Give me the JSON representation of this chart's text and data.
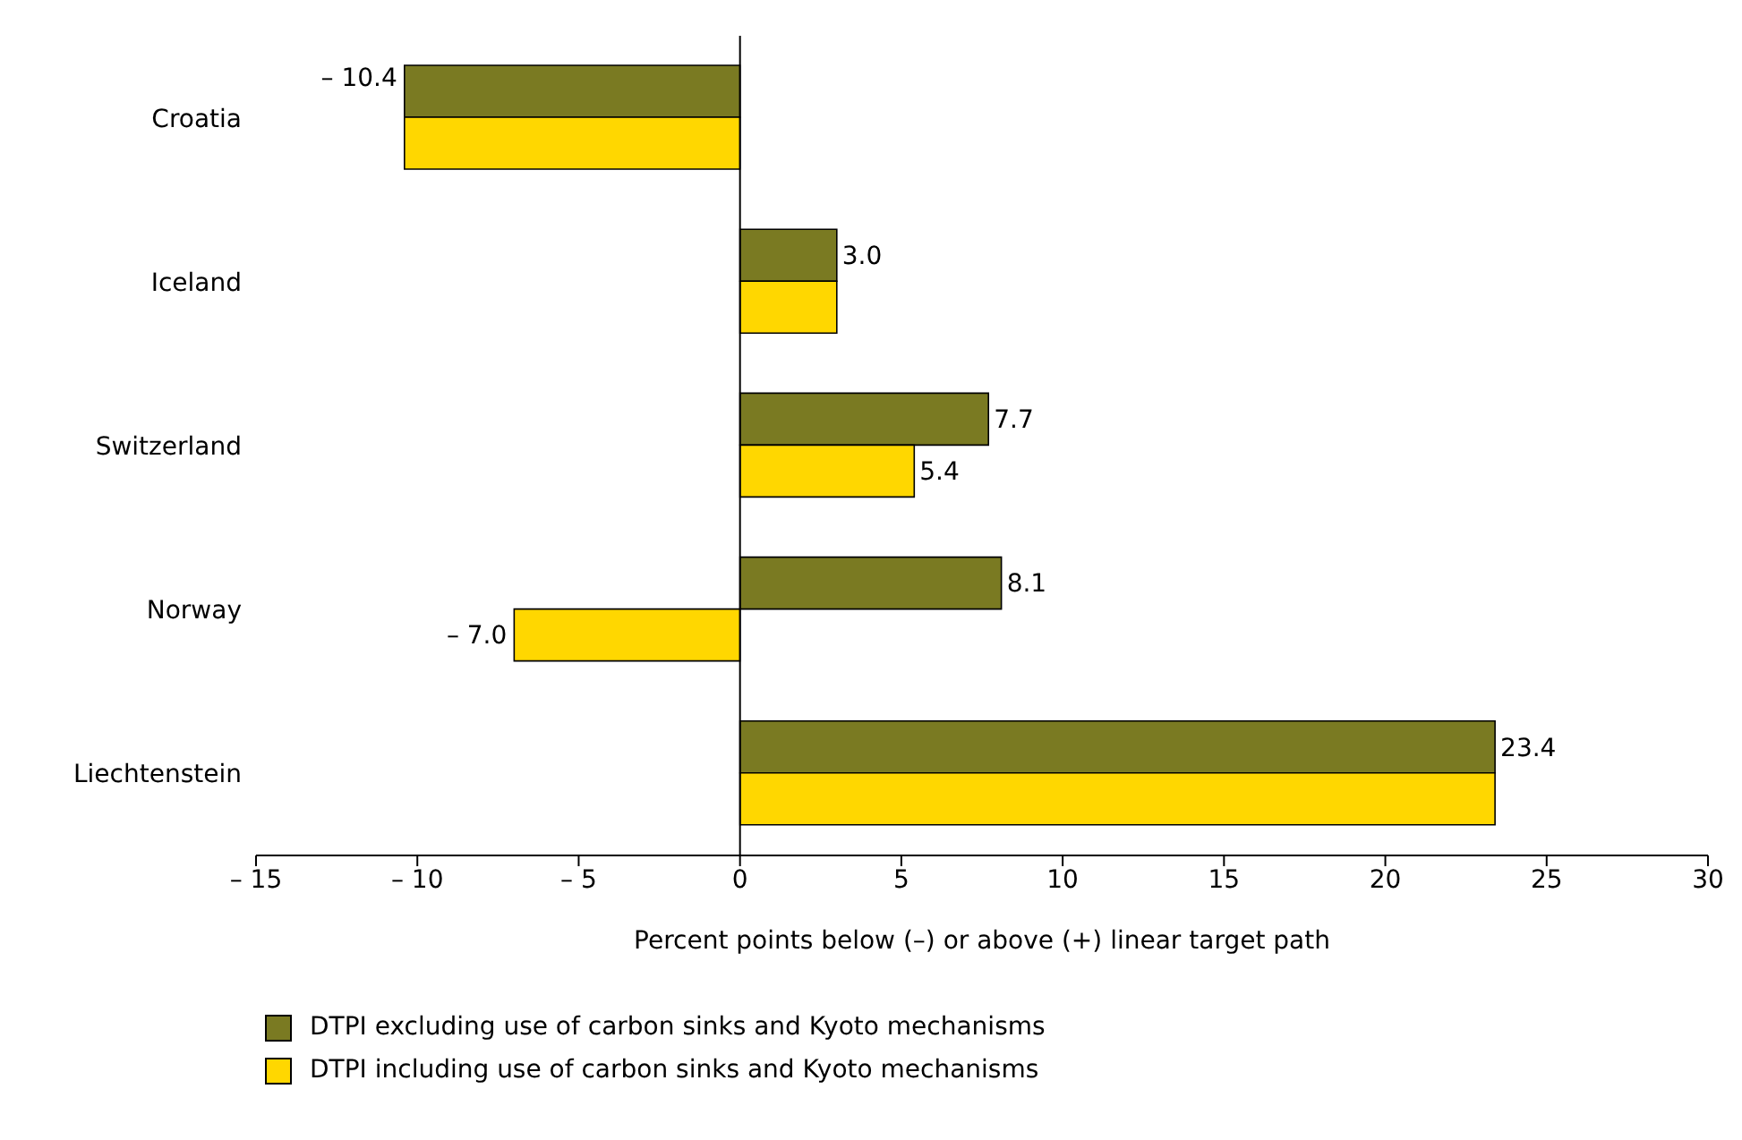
{
  "chart_data": {
    "type": "bar",
    "orientation": "horizontal",
    "categories": [
      "Croatia",
      "Iceland",
      "Switzerland",
      "Norway",
      "Liechtenstein"
    ],
    "series": [
      {
        "name": "DTPI excluding use of carbon sinks and Kyoto mechanisms",
        "color": "#7a7a22",
        "values": [
          -10.4,
          3.0,
          7.7,
          8.1,
          23.4
        ],
        "value_labels": [
          "– 10.4",
          "3.0",
          "7.7",
          "8.1",
          "23.4"
        ]
      },
      {
        "name": "DTPI including use of carbon sinks and Kyoto mechanisms",
        "color": "#ffd700",
        "values": [
          -10.4,
          3.0,
          5.4,
          -7.0,
          23.4
        ],
        "value_labels": [
          null,
          null,
          "5.4",
          "– 7.0",
          null
        ]
      }
    ],
    "xlabel": "Percent points below (–) or above (+) linear target path",
    "xlim": [
      -15,
      30
    ],
    "xticks": [
      {
        "value": -15,
        "label": "– 15"
      },
      {
        "value": -10,
        "label": "– 10"
      },
      {
        "value": -5,
        "label": "– 5"
      },
      0,
      5,
      10,
      15,
      20,
      25,
      30
    ],
    "legend": "bottom"
  }
}
